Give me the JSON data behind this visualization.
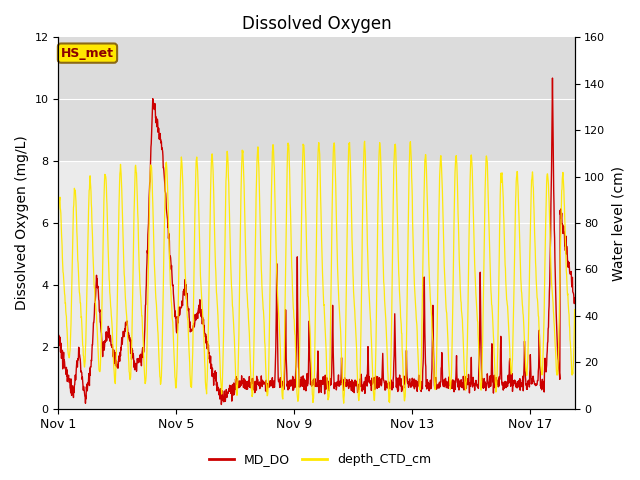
{
  "title": "Dissolved Oxygen",
  "ylabel_left": "Dissolved Oxygen (mg/L)",
  "ylabel_right": "Water level (cm)",
  "ylim_left": [
    0,
    12
  ],
  "ylim_right": [
    0,
    160
  ],
  "xlim_days": [
    0,
    17.5
  ],
  "xtick_labels": [
    "Nov 1",
    "Nov 5",
    "Nov 9",
    "Nov 13",
    "Nov 17"
  ],
  "xtick_positions": [
    0,
    4,
    8,
    12,
    16
  ],
  "annotation_label": "HS_met",
  "legend_labels": [
    "MD_DO",
    "depth_CTD_cm"
  ],
  "line_color_red": "#CC0000",
  "line_color_yellow": "#FFE800",
  "bg_band1_color": "#DCDCDC",
  "bg_band2_color": "#EBEBEB",
  "title_fontsize": 12,
  "axis_label_fontsize": 10
}
